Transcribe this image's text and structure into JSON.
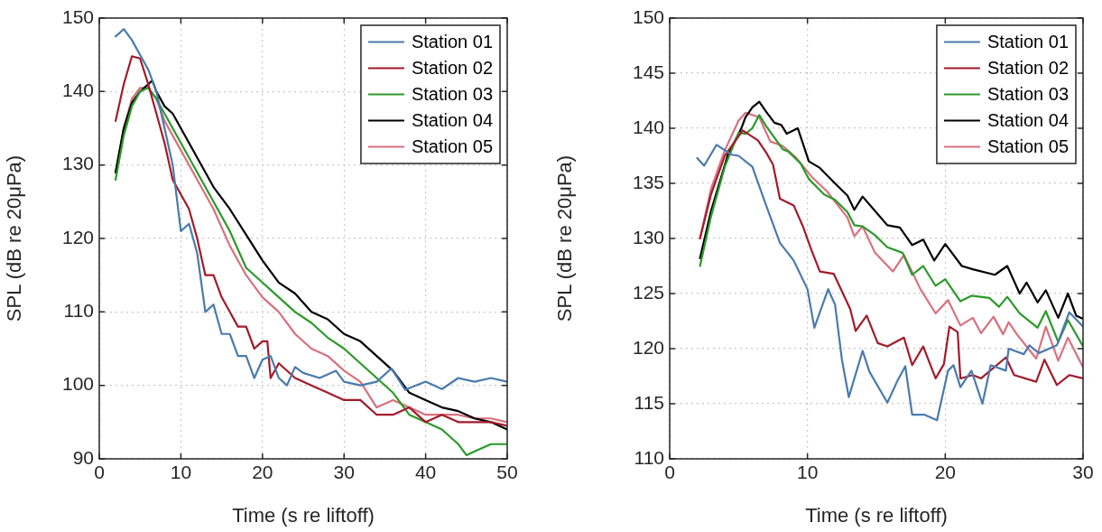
{
  "chart_data": [
    {
      "type": "line",
      "xlabel": "Time (s re liftoff)",
      "ylabel": "SPL (dB re 20μPa)",
      "xlim": [
        0,
        50
      ],
      "xticks": [
        0,
        10,
        20,
        30,
        40,
        50
      ],
      "ylim": [
        90,
        150
      ],
      "yticks": [
        90,
        100,
        110,
        120,
        130,
        140,
        150
      ],
      "grid": true,
      "legend": "top right",
      "line_style": "solid",
      "marker": "none",
      "series": [
        {
          "name": "Station 01",
          "color": "#4a7aad",
          "x": [
            2,
            3,
            4,
            5,
            6,
            7,
            8,
            9,
            10,
            11,
            12,
            13,
            14,
            15,
            16,
            17,
            18,
            19,
            20,
            21,
            22,
            23,
            24,
            25,
            27,
            29,
            30,
            32,
            34,
            35.8,
            37.5,
            40,
            42,
            44,
            46,
            48,
            50
          ],
          "values": [
            147.5,
            148.5,
            147,
            145,
            143,
            140,
            135,
            130,
            121,
            122,
            118,
            110,
            111,
            107,
            107,
            104,
            104,
            101,
            103.5,
            104,
            101,
            100,
            102.5,
            101.7,
            101,
            102,
            100.5,
            100,
            100.5,
            102.3,
            99.4,
            100.5,
            99.5,
            101,
            100.5,
            101,
            100.5
          ]
        },
        {
          "name": "Station 02",
          "color": "#a31a2a",
          "x": [
            2,
            3,
            4,
            5,
            6,
            7,
            8,
            9,
            10,
            11,
            12,
            13,
            14,
            15,
            16,
            17,
            18,
            19,
            20,
            20.6,
            21,
            22,
            24,
            26,
            28,
            30,
            32,
            34,
            36,
            38,
            40,
            42,
            44,
            46,
            48,
            50
          ],
          "values": [
            136,
            141,
            144.8,
            144.5,
            141,
            137,
            133,
            128,
            126,
            124,
            120,
            115,
            115,
            112,
            110,
            108,
            108,
            105,
            106,
            106,
            101,
            103,
            101,
            100,
            99,
            98,
            98,
            96,
            96,
            97,
            95,
            96,
            95,
            95,
            95,
            94.5
          ]
        },
        {
          "name": "Station 03",
          "color": "#2a9a2a",
          "x": [
            2,
            3,
            4,
            5,
            6,
            7,
            8,
            10,
            12,
            14,
            16,
            18,
            20,
            22,
            24,
            26,
            28,
            30,
            32,
            34,
            36,
            38,
            40,
            42,
            44,
            45,
            46,
            48,
            50
          ],
          "values": [
            128,
            134,
            138,
            140,
            140.5,
            139,
            137,
            133,
            129,
            125,
            121,
            116,
            114,
            112,
            110,
            108.5,
            106.5,
            105,
            103,
            101,
            99,
            96,
            95,
            94,
            92,
            90.5,
            91,
            92,
            92
          ]
        },
        {
          "name": "Station 04",
          "color": "#000000",
          "x": [
            2,
            3,
            4,
            5,
            6,
            6.5,
            7,
            8,
            9,
            10,
            12,
            14,
            16,
            18,
            20,
            22,
            24,
            26,
            28,
            30,
            32,
            34,
            36,
            38,
            40,
            42,
            44,
            46,
            48,
            50
          ],
          "values": [
            129,
            135,
            138.5,
            140,
            141,
            141.5,
            140,
            138,
            137,
            135,
            131,
            127,
            124,
            120.5,
            117,
            114,
            112.5,
            110,
            109,
            107,
            106,
            104,
            102,
            99,
            98,
            97,
            96.5,
            95.5,
            95,
            94
          ]
        },
        {
          "name": "Station 05",
          "color": "#d9707e",
          "x": [
            2,
            3,
            4,
            5,
            6,
            7,
            8,
            10,
            12,
            14,
            16,
            18,
            20,
            22,
            24,
            26,
            28,
            30,
            32,
            34,
            36,
            38,
            40,
            42,
            44,
            46,
            48,
            50
          ],
          "values": [
            129,
            135,
            139,
            140.5,
            140.5,
            139,
            136,
            132,
            128,
            124,
            119,
            115,
            112,
            110,
            107,
            105,
            104,
            102,
            100.5,
            97,
            98,
            97,
            96,
            96,
            96,
            95.5,
            95.5,
            95
          ]
        }
      ]
    },
    {
      "type": "line",
      "xlabel": "Time (s re liftoff)",
      "ylabel": "SPL (dB re 20μPa)",
      "xlim": [
        0,
        30
      ],
      "xticks": [
        0,
        10,
        20,
        30
      ],
      "ylim": [
        110,
        150
      ],
      "yticks": [
        110,
        115,
        120,
        125,
        130,
        135,
        140,
        145,
        150
      ],
      "grid": true,
      "legend": "top right",
      "line_style": "solid",
      "marker": "none",
      "series": [
        {
          "name": "Station 01",
          "color": "#4a7aad",
          "x": [
            2,
            2.5,
            3.4,
            4.5,
            5,
            6,
            7,
            8,
            9,
            10,
            10.5,
            11.5,
            12,
            12.5,
            13,
            14,
            14.5,
            15.8,
            16.5,
            17.1,
            17.6,
            18.5,
            19.4,
            20.2,
            20.6,
            21.1,
            21.9,
            22.7,
            23.3,
            24.4,
            24.6,
            25.7,
            26.1,
            26.8,
            28.1,
            29,
            30
          ],
          "values": [
            137.3,
            136.6,
            138.5,
            137.6,
            137.5,
            136.5,
            133,
            129.6,
            128,
            125.4,
            121.9,
            125.4,
            124,
            119,
            115.6,
            119.8,
            117.9,
            115.1,
            117,
            118.4,
            114,
            114,
            113.5,
            118,
            118.5,
            116.5,
            118,
            115,
            118.5,
            118,
            120,
            119.5,
            120.3,
            119.6,
            120.3,
            123.3,
            122
          ]
        },
        {
          "name": "Station 02",
          "color": "#a31a2a",
          "x": [
            2.2,
            3,
            4,
            5.3,
            6.4,
            7,
            7.5,
            8,
            9,
            9.7,
            10.3,
            10.9,
            11.9,
            13.1,
            13.5,
            14.3,
            15.1,
            15.8,
            17,
            17.6,
            18.4,
            19.3,
            19.9,
            20.3,
            20.9,
            21.1,
            22,
            22.6,
            24.4,
            25,
            26.6,
            27.2,
            28.1,
            29,
            30
          ],
          "values": [
            130,
            134,
            137.5,
            139.8,
            138.9,
            137.8,
            136.7,
            133.6,
            133,
            131,
            128.9,
            127,
            126.8,
            123.6,
            121.6,
            123,
            120.5,
            120.2,
            121,
            118.5,
            120.2,
            117.3,
            118.6,
            122,
            121.5,
            117.3,
            117.6,
            117.3,
            119.2,
            117.6,
            117,
            119,
            116.7,
            117.6,
            117.3
          ]
        },
        {
          "name": "Station 03",
          "color": "#2a9a2a",
          "x": [
            2.2,
            3,
            4,
            5,
            5.5,
            6,
            6.5,
            7,
            8.2,
            8.6,
            9.5,
            10.1,
            11.2,
            12,
            12.9,
            13.4,
            14,
            14.9,
            15.8,
            16.9,
            17.6,
            18.4,
            19.3,
            20,
            21.1,
            21.9,
            23.2,
            23.9,
            24.5,
            25.4,
            26.7,
            27.3,
            28.2,
            28.9,
            30
          ],
          "values": [
            127.5,
            132,
            136.5,
            139.6,
            139.5,
            140,
            141.2,
            140.2,
            138.1,
            137.9,
            136.8,
            135.4,
            134,
            133.5,
            132.4,
            131.2,
            131.1,
            130.3,
            129.2,
            128.7,
            126.7,
            127.5,
            125.7,
            126.3,
            124.3,
            124.8,
            124.6,
            123.8,
            124.7,
            123.2,
            121.9,
            123.4,
            120.6,
            122.6,
            120.2
          ]
        },
        {
          "name": "Station 04",
          "color": "#000000",
          "x": [
            2.2,
            3,
            4.2,
            5.2,
            5.5,
            6,
            6.5,
            7,
            7.6,
            8.1,
            8.5,
            9.3,
            10.1,
            10.9,
            12,
            12.9,
            13.4,
            14,
            14.9,
            15.8,
            16.7,
            17.6,
            18.4,
            19.2,
            20,
            21.2,
            22,
            23.6,
            24.5,
            25.4,
            25.9,
            26.7,
            27.3,
            28.2,
            28.9,
            29.5,
            30
          ],
          "values": [
            128.2,
            132.5,
            137.5,
            140,
            141,
            141.9,
            142.4,
            141.5,
            140.5,
            140.3,
            139.5,
            140,
            137,
            136.4,
            135,
            133.9,
            132.6,
            133.8,
            132.5,
            131.2,
            131,
            129.4,
            129.9,
            128,
            129.5,
            127.5,
            127.2,
            126.7,
            127.5,
            125,
            126,
            124.2,
            125.3,
            122.8,
            125,
            123,
            122.7
          ]
        },
        {
          "name": "Station 05",
          "color": "#d9707e",
          "x": [
            2.2,
            3,
            4,
            5,
            5.5,
            6.5,
            7.3,
            8.2,
            9.2,
            10.3,
            11.4,
            12.9,
            13.4,
            14,
            14.9,
            16.2,
            17,
            18.2,
            19.3,
            20.2,
            21.1,
            22,
            22.6,
            23.5,
            24.2,
            24.6,
            25.2,
            26.6,
            27.3,
            28.2,
            28.9,
            30
          ],
          "values": [
            130,
            134.5,
            138,
            140.7,
            141.4,
            141,
            138.8,
            138.4,
            137.3,
            135.6,
            134.3,
            131.9,
            130.2,
            131.1,
            128.7,
            127,
            128.5,
            125.4,
            123.2,
            124.4,
            122.1,
            122.8,
            121.4,
            122.9,
            121.3,
            122.4,
            121.3,
            119.1,
            122,
            118.9,
            121,
            118.3
          ]
        }
      ]
    }
  ]
}
